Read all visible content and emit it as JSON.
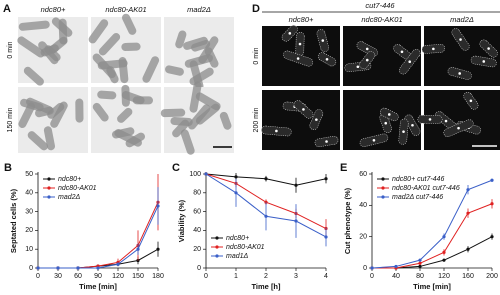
{
  "panel_a": {
    "label": "A",
    "columns": [
      "ndc80+",
      "ndc80-AK01",
      "mad2Δ"
    ],
    "rows": [
      "0 min",
      "150 min"
    ]
  },
  "panel_d": {
    "label": "D",
    "title": "cut7-446",
    "columns": [
      "ndc80+",
      "ndc80-AK01",
      "mad2Δ"
    ],
    "rows": [
      "0 min",
      "200 min"
    ]
  },
  "chart_data": [
    {
      "type": "line",
      "panel": "B",
      "ylabel": "Septated cells (%)",
      "xlabel": "Time [min]",
      "x": [
        0,
        30,
        60,
        90,
        120,
        150,
        180
      ],
      "xlim": [
        0,
        180
      ],
      "xticks": [
        0,
        30,
        60,
        90,
        120,
        150,
        180
      ],
      "ylim": [
        0,
        50
      ],
      "yticks": [
        0,
        10,
        20,
        30,
        40,
        50
      ],
      "legend": "upper left",
      "series": [
        {
          "name": "ndc80+",
          "color": "#111111",
          "values": [
            0,
            0,
            0,
            1,
            2,
            4,
            10
          ],
          "errors": [
            0,
            0,
            0,
            0.5,
            1,
            2,
            4
          ]
        },
        {
          "name": "ndc80-AK01",
          "color": "#e02020",
          "values": [
            0,
            0,
            0,
            1,
            3,
            12,
            35
          ],
          "errors": [
            0,
            0,
            0,
            0.5,
            2,
            8,
            15
          ]
        },
        {
          "name": "mad2Δ",
          "color": "#3a5fc8",
          "values": [
            0,
            0,
            0,
            0,
            2,
            10,
            33
          ],
          "errors": [
            0,
            0,
            0,
            0,
            1,
            3,
            10
          ]
        }
      ]
    },
    {
      "type": "line",
      "panel": "C",
      "ylabel": "Viability (%)",
      "xlabel": "Time [h]",
      "x": [
        0,
        1,
        2,
        3,
        4
      ],
      "xlim": [
        0,
        4
      ],
      "xticks": [
        0,
        1,
        2,
        3,
        4
      ],
      "ylim": [
        0,
        100
      ],
      "yticks": [
        0,
        20,
        40,
        60,
        80,
        100
      ],
      "legend": "lower left",
      "series": [
        {
          "name": "ndc80+",
          "color": "#111111",
          "values": [
            100,
            97,
            95,
            88,
            95
          ],
          "errors": [
            0,
            4,
            3,
            8,
            5
          ]
        },
        {
          "name": "ndc80-AK01",
          "color": "#e02020",
          "values": [
            100,
            90,
            70,
            58,
            42
          ],
          "errors": [
            0,
            4,
            3,
            5,
            10
          ]
        },
        {
          "name": "mad1Δ",
          "color": "#3a5fc8",
          "values": [
            100,
            80,
            55,
            50,
            33
          ],
          "errors": [
            0,
            15,
            15,
            18,
            10
          ]
        }
      ]
    },
    {
      "type": "line",
      "panel": "E",
      "ylabel": "Cut phenotype (%)",
      "xlabel": "Time [min]",
      "x": [
        0,
        40,
        80,
        120,
        160,
        200
      ],
      "xlim": [
        0,
        200
      ],
      "xticks": [
        0,
        40,
        80,
        120,
        160,
        200
      ],
      "ylim": [
        0,
        60
      ],
      "yticks": [
        0,
        20,
        40,
        60
      ],
      "legend": "upper left",
      "series": [
        {
          "name": "ndc80+ cut7-446",
          "color": "#111111",
          "values": [
            0,
            0,
            1,
            5,
            12,
            20
          ],
          "errors": [
            0,
            0,
            0.5,
            1,
            2,
            2
          ]
        },
        {
          "name": "ndc80-AK01 cut7-446",
          "color": "#e02020",
          "values": [
            0,
            0,
            3,
            10,
            35,
            41
          ],
          "errors": [
            0,
            0,
            1,
            2,
            3,
            3
          ]
        },
        {
          "name": "mad2Δ cut7-446",
          "color": "#3a5fc8",
          "values": [
            0,
            1,
            5,
            20,
            50,
            56
          ],
          "errors": [
            0,
            0.5,
            1,
            2,
            3,
            1
          ]
        }
      ]
    }
  ]
}
